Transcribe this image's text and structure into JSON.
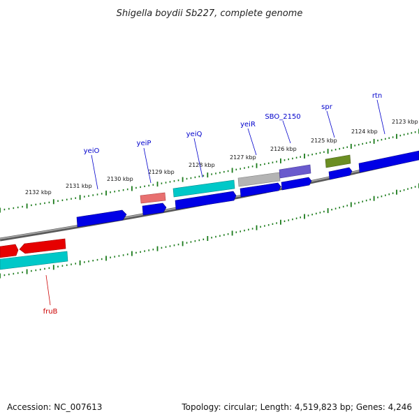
{
  "title": "Shigella boydii Sb227, complete genome",
  "accession": "Accession: NC_007613",
  "summary": "Topology: circular; Length: 4,519,823 bp; Genes: 4,246",
  "colors": {
    "backbone": "#808080",
    "tick": "#1a7a1a",
    "blue": "#0000e6",
    "red": "#e60000",
    "cyan": "#00c8c8",
    "pink": "#e87070",
    "gray": "#b4b4b4",
    "purple": "#6a5acd",
    "olive": "#6b8e23",
    "label_blue": "#0000cc",
    "label_red": "#cc0000"
  },
  "scale_labels": [
    "2132 kbp",
    "2131 kbp",
    "2130 kbp",
    "2129 kbp",
    "2128 kbp",
    "2127 kbp",
    "2126 kbp",
    "2125 kbp",
    "2124 kbp",
    "2123 kbp"
  ],
  "genes": [
    {
      "name": "yeiO",
      "color": "blue"
    },
    {
      "name": "yeiP",
      "color": "blue"
    },
    {
      "name": "yeiQ",
      "color": "blue"
    },
    {
      "name": "yeiR",
      "color": "blue"
    },
    {
      "name": "SBO_2150",
      "color": "blue"
    },
    {
      "name": "spr",
      "color": "blue"
    },
    {
      "name": "rtn",
      "color": "blue"
    },
    {
      "name": "fruB",
      "color": "red"
    }
  ]
}
